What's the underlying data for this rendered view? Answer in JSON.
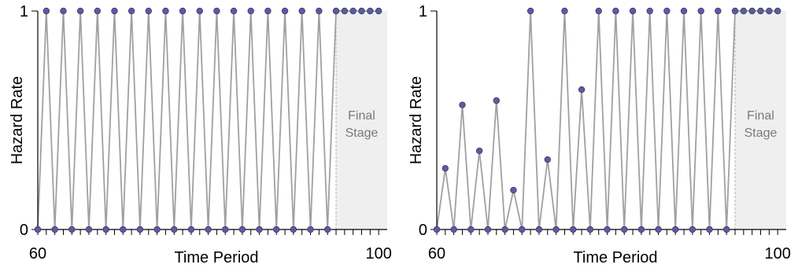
{
  "chart_data": [
    {
      "type": "line",
      "xlabel": "Time Period",
      "ylabel": "Hazard Rate",
      "xlim": [
        60,
        101
      ],
      "ylim": [
        0,
        1
      ],
      "x_tick_labels": [
        "60",
        "100"
      ],
      "y_tick_labels": [
        "0",
        "1"
      ],
      "annotation": {
        "lines": [
          "Final",
          "Stage"
        ],
        "shaded_from_x": 95
      },
      "colors": {
        "line": "#a0a0a0",
        "marker": "#5c5c9e",
        "marker_edge": "#3a3a70",
        "shade": "#efefef",
        "axis": "#000000"
      },
      "series": [
        {
          "x": [
            60,
            61,
            62,
            63,
            64,
            65,
            66,
            67,
            68,
            69,
            70,
            71,
            72,
            73,
            74,
            75,
            76,
            77,
            78,
            79,
            80,
            81,
            82,
            83,
            84,
            85,
            86,
            87,
            88,
            89,
            90,
            91,
            92,
            93,
            94,
            95,
            96,
            97,
            98,
            99,
            100
          ],
          "y": [
            0,
            1,
            0,
            1,
            0,
            1,
            0,
            1,
            0,
            1,
            0,
            1,
            0,
            1,
            0,
            1,
            0,
            1,
            0,
            1,
            0,
            1,
            0,
            1,
            0,
            1,
            0,
            1,
            0,
            1,
            0,
            1,
            0,
            1,
            0,
            1,
            1,
            1,
            1,
            1,
            1
          ]
        }
      ]
    },
    {
      "type": "line",
      "xlabel": "Time Period",
      "ylabel": "Hazard Rate",
      "xlim": [
        60,
        101
      ],
      "ylim": [
        0,
        1
      ],
      "x_tick_labels": [
        "60",
        "100"
      ],
      "y_tick_labels": [
        "0",
        "1"
      ],
      "annotation": {
        "lines": [
          "Final",
          "Stage"
        ],
        "shaded_from_x": 95
      },
      "colors": {
        "line": "#a0a0a0",
        "marker": "#5c5c9e",
        "marker_edge": "#3a3a70",
        "shade": "#efefef",
        "axis": "#000000"
      },
      "series": [
        {
          "x": [
            60,
            61,
            62,
            63,
            64,
            65,
            66,
            67,
            68,
            69,
            70,
            71,
            72,
            73,
            74,
            75,
            76,
            77,
            78,
            79,
            80,
            81,
            82,
            83,
            84,
            85,
            86,
            87,
            88,
            89,
            90,
            91,
            92,
            93,
            94,
            95,
            96,
            97,
            98,
            99,
            100
          ],
          "y": [
            0,
            0.28,
            0,
            0.57,
            0,
            0.36,
            0,
            0.59,
            0,
            0.18,
            0,
            1,
            0,
            0.32,
            0,
            1,
            0,
            0.64,
            0,
            1,
            0,
            1,
            0,
            1,
            0,
            1,
            0,
            1,
            0,
            1,
            0,
            1,
            0,
            1,
            0,
            1,
            1,
            1,
            1,
            1,
            1
          ]
        }
      ]
    }
  ]
}
